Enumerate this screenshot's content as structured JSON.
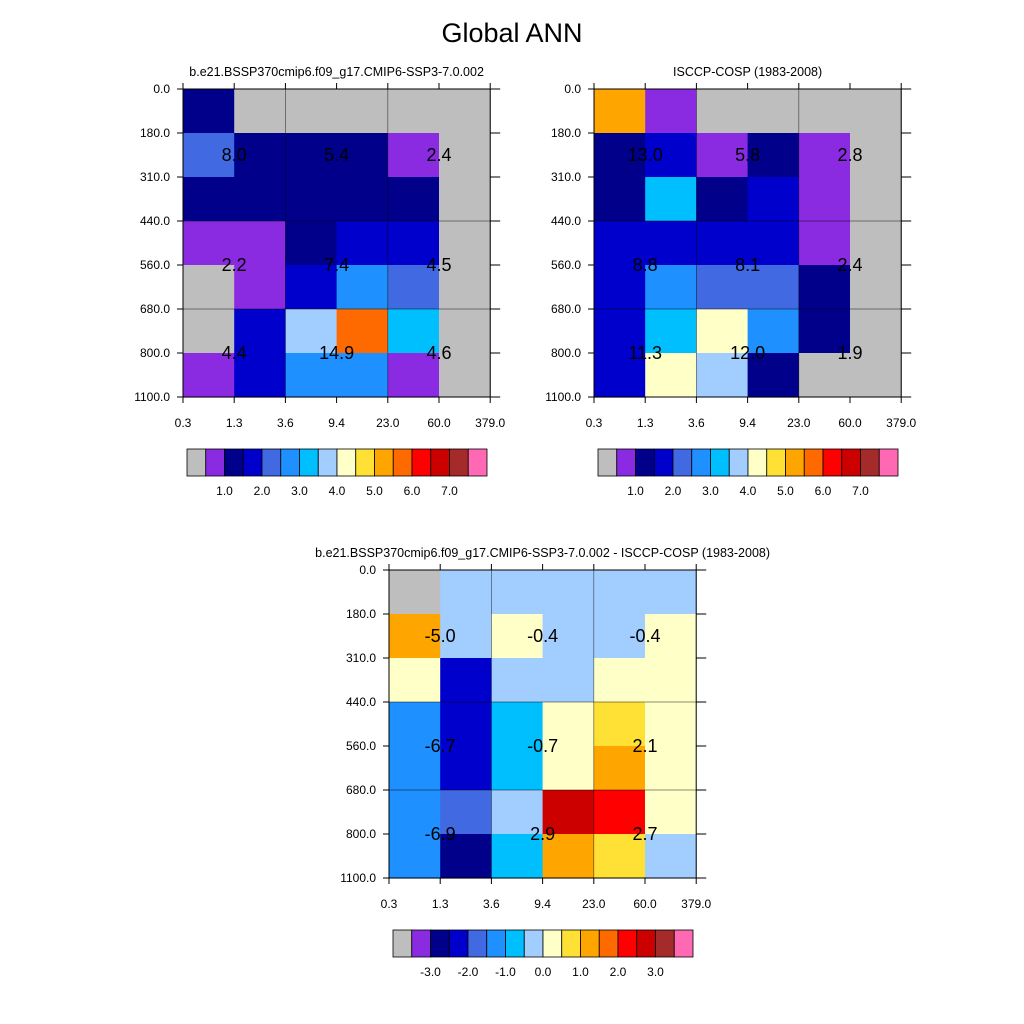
{
  "title": "Global ANN",
  "colorbar_colors": [
    "#bebebe",
    "#8a2be2",
    "#00008b",
    "#0000cd",
    "#4169e1",
    "#1e90ff",
    "#00bfff",
    "#a2cdff",
    "#ffffc8",
    "#ffe135",
    "#ffa500",
    "#ff6a00",
    "#ff0000",
    "#cd0000",
    "#a52a2a",
    "#ff69b4"
  ],
  "x_ticks": [
    "0.3",
    "1.3",
    "3.6",
    "9.4",
    "23.0",
    "60.0",
    "379.0"
  ],
  "y_ticks": [
    "0.0",
    "180.0",
    "310.0",
    "440.0",
    "560.0",
    "680.0",
    "800.0",
    "1100.0"
  ],
  "chart_data": [
    {
      "type": "heatmap",
      "title": "b.e21.BSSP370cmip6.f09_g17.CMIP6-SSP3-7.0.002",
      "colorbar_labels": [
        "1.0",
        "2.0",
        "3.0",
        "4.0",
        "5.0",
        "6.0",
        "7.0"
      ],
      "colorbar_label_start_box": 2,
      "cell_color_index": [
        [
          2,
          0,
          0,
          0,
          0,
          0
        ],
        [
          4,
          2,
          2,
          2,
          1,
          0
        ],
        [
          2,
          2,
          2,
          2,
          2,
          0
        ],
        [
          1,
          1,
          2,
          3,
          3,
          0
        ],
        [
          0,
          1,
          3,
          5,
          4,
          0
        ],
        [
          0,
          3,
          7,
          11,
          6,
          0
        ],
        [
          1,
          3,
          5,
          5,
          1,
          0
        ]
      ],
      "annotations": [
        {
          "row": 1.5,
          "col": 1,
          "text": "8.0"
        },
        {
          "row": 1.5,
          "col": 3,
          "text": "5.4"
        },
        {
          "row": 1.5,
          "col": 5,
          "text": "2.4"
        },
        {
          "row": 4,
          "col": 1,
          "text": "2.2"
        },
        {
          "row": 4,
          "col": 3,
          "text": "7.4"
        },
        {
          "row": 4,
          "col": 5,
          "text": "4.5"
        },
        {
          "row": 6,
          "col": 1,
          "text": "4.4"
        },
        {
          "row": 6,
          "col": 3,
          "text": "14.9"
        },
        {
          "row": 6,
          "col": 5,
          "text": "4.6"
        }
      ]
    },
    {
      "type": "heatmap",
      "title": "ISCCP-COSP (1983-2008)",
      "colorbar_labels": [
        "1.0",
        "2.0",
        "3.0",
        "4.0",
        "5.0",
        "6.0",
        "7.0"
      ],
      "colorbar_label_start_box": 2,
      "cell_color_index": [
        [
          10,
          1,
          0,
          0,
          0,
          0
        ],
        [
          2,
          3,
          1,
          2,
          1,
          0
        ],
        [
          2,
          6,
          2,
          3,
          1,
          0
        ],
        [
          3,
          3,
          3,
          3,
          1,
          0
        ],
        [
          3,
          5,
          4,
          4,
          2,
          0
        ],
        [
          3,
          6,
          8,
          5,
          2,
          0
        ],
        [
          3,
          8,
          7,
          2,
          0,
          0
        ]
      ],
      "annotations": [
        {
          "row": 1.5,
          "col": 1,
          "text": "13.0"
        },
        {
          "row": 1.5,
          "col": 3,
          "text": "5.8"
        },
        {
          "row": 1.5,
          "col": 5,
          "text": "2.8"
        },
        {
          "row": 4,
          "col": 1,
          "text": "8.8"
        },
        {
          "row": 4,
          "col": 3,
          "text": "8.1"
        },
        {
          "row": 4,
          "col": 5,
          "text": "2.4"
        },
        {
          "row": 6,
          "col": 1,
          "text": "11.3"
        },
        {
          "row": 6,
          "col": 3,
          "text": "12.0"
        },
        {
          "row": 6,
          "col": 5,
          "text": "1.9"
        }
      ]
    },
    {
      "type": "heatmap",
      "title": "b.e21.BSSP370cmip6.f09_g17.CMIP6-SSP3-7.0.002 - ISCCP-COSP (1983-2008)",
      "colorbar_labels": [
        "-3.0",
        "-2.0",
        "-1.0",
        "0.0",
        "1.0",
        "2.0",
        "3.0"
      ],
      "colorbar_label_start_box": 2,
      "cell_color_index": [
        [
          0,
          7,
          7,
          7,
          7,
          7
        ],
        [
          10,
          7,
          8,
          7,
          7,
          8
        ],
        [
          8,
          3,
          7,
          7,
          8,
          8
        ],
        [
          5,
          3,
          6,
          8,
          9,
          8
        ],
        [
          5,
          3,
          6,
          8,
          10,
          8
        ],
        [
          5,
          4,
          7,
          13,
          12,
          8
        ],
        [
          5,
          2,
          6,
          10,
          9,
          7
        ]
      ],
      "annotations": [
        {
          "row": 1.5,
          "col": 1,
          "text": "-5.0"
        },
        {
          "row": 1.5,
          "col": 3,
          "text": "-0.4"
        },
        {
          "row": 1.5,
          "col": 5,
          "text": "-0.4"
        },
        {
          "row": 4,
          "col": 1,
          "text": "-6.7"
        },
        {
          "row": 4,
          "col": 3,
          "text": "-0.7"
        },
        {
          "row": 4,
          "col": 5,
          "text": "2.1"
        },
        {
          "row": 6,
          "col": 1,
          "text": "-6.9"
        },
        {
          "row": 6,
          "col": 3,
          "text": "2.9"
        },
        {
          "row": 6,
          "col": 5,
          "text": "2.7"
        }
      ]
    }
  ]
}
